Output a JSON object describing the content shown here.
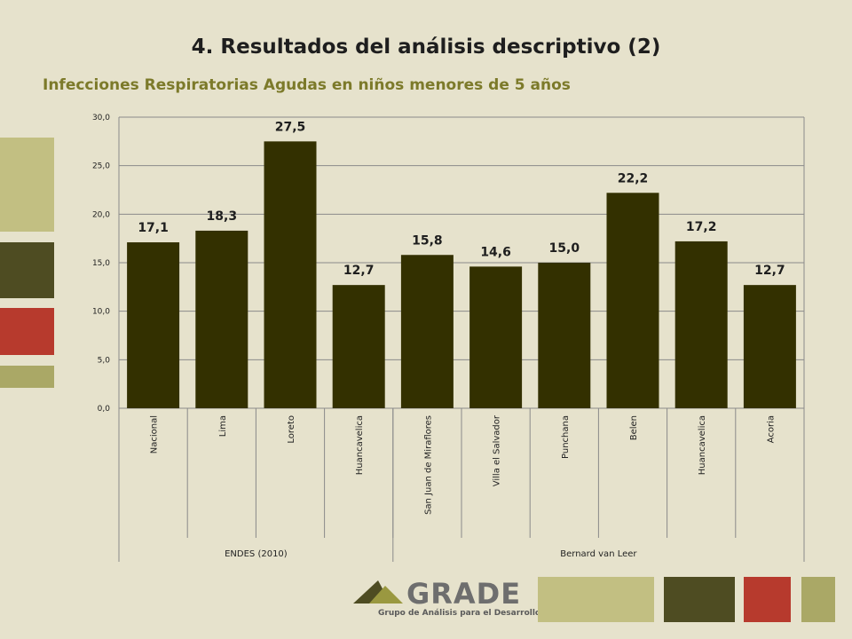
{
  "slide": {
    "title": "4. Resultados del análisis descriptivo (2)",
    "subtitle": "Infecciones Respiratorias Agudas en niños menores de 5 años"
  },
  "colors": {
    "background": "#e6e2cc",
    "bar": "#333000",
    "subtitle": "#7c7a2a",
    "block_khaki": "#c2bf82",
    "block_olive": "#4e4c22",
    "block_red": "#b73a2d",
    "block_light_olive": "#aaa866"
  },
  "chart_data": {
    "type": "bar",
    "categories": [
      "Nacional",
      "Lima",
      "Loreto",
      "Huancavelica",
      "San Juan de Miraflores",
      "Villa el Salvador",
      "Punchana",
      "Belen",
      "Huancavelica",
      "Acoria"
    ],
    "values": [
      17.1,
      18.3,
      27.5,
      12.7,
      15.8,
      14.6,
      15.0,
      22.2,
      17.2,
      12.7
    ],
    "value_labels": [
      "17,1",
      "18,3",
      "27,5",
      "12,7",
      "15,8",
      "14,6",
      "15,0",
      "22,2",
      "17,2",
      "12,7"
    ],
    "groups": [
      {
        "label": "ENDES (2010)",
        "count": 4
      },
      {
        "label": "Bernard van Leer",
        "count": 6
      }
    ],
    "yticks": [
      "0,0",
      "5,0",
      "10,0",
      "15,0",
      "20,0",
      "25,0",
      "30,0"
    ],
    "ylim": [
      0,
      30
    ],
    "grid": true,
    "legend": "none"
  },
  "logo": {
    "word": "GRADE",
    "tagline": "Grupo de Análisis para el Desarrollo"
  }
}
